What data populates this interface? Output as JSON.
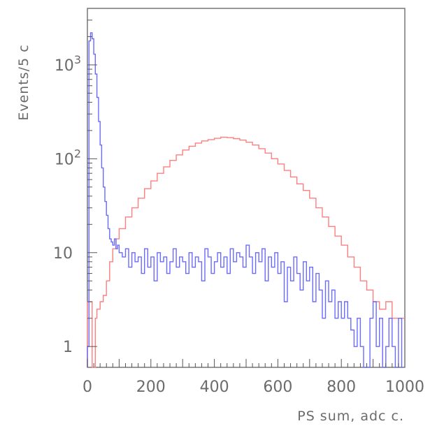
{
  "chart_data": {
    "type": "line",
    "title": "",
    "xlabel": "PS sum, adc c.",
    "ylabel": "Events/5 c",
    "xlim": [
      0,
      1000
    ],
    "ylim": [
      0.6,
      4000
    ],
    "yscale": "log",
    "x_tick_labels": [
      "0",
      "200",
      "400",
      "600",
      "800",
      "1000"
    ],
    "y_tick_labels": [
      {
        "value": 1,
        "label": "1"
      },
      {
        "value": 10,
        "label": "10"
      },
      {
        "value": 100,
        "label": "10",
        "exponent": "2"
      },
      {
        "value": 1000,
        "label": "10",
        "exponent": "3"
      }
    ],
    "grid": false,
    "legend": "none",
    "series": [
      {
        "color": "#ff7f7f",
        "points": [
          [
            0,
            3
          ],
          [
            5,
            3
          ],
          [
            10,
            3
          ],
          [
            15,
            0.5
          ],
          [
            20,
            0.5
          ],
          [
            25,
            2
          ],
          [
            30,
            2.5
          ],
          [
            40,
            3
          ],
          [
            50,
            3.5
          ],
          [
            60,
            5
          ],
          [
            70,
            8
          ],
          [
            80,
            11
          ],
          [
            90,
            14
          ],
          [
            100,
            18
          ],
          [
            120,
            24
          ],
          [
            140,
            30
          ],
          [
            160,
            38
          ],
          [
            180,
            48
          ],
          [
            200,
            58
          ],
          [
            220,
            70
          ],
          [
            240,
            82
          ],
          [
            260,
            96
          ],
          [
            280,
            110
          ],
          [
            300,
            124
          ],
          [
            320,
            136
          ],
          [
            340,
            147
          ],
          [
            360,
            155
          ],
          [
            380,
            160
          ],
          [
            400,
            165
          ],
          [
            420,
            170
          ],
          [
            440,
            168
          ],
          [
            460,
            164
          ],
          [
            480,
            158
          ],
          [
            500,
            150
          ],
          [
            520,
            140
          ],
          [
            540,
            128
          ],
          [
            560,
            115
          ],
          [
            580,
            100
          ],
          [
            600,
            88
          ],
          [
            620,
            75
          ],
          [
            640,
            64
          ],
          [
            660,
            54
          ],
          [
            680,
            46
          ],
          [
            700,
            38
          ],
          [
            720,
            30
          ],
          [
            740,
            24
          ],
          [
            760,
            19
          ],
          [
            780,
            15
          ],
          [
            800,
            12
          ],
          [
            820,
            9
          ],
          [
            840,
            7
          ],
          [
            860,
            5
          ],
          [
            880,
            4
          ],
          [
            900,
            3
          ],
          [
            920,
            2.5
          ],
          [
            940,
            3
          ],
          [
            960,
            2
          ],
          [
            980,
            2
          ],
          [
            995,
            2
          ]
        ]
      },
      {
        "color": "#6a6aff",
        "points": [
          [
            0,
            1
          ],
          [
            5,
            1800
          ],
          [
            10,
            2200
          ],
          [
            15,
            1900
          ],
          [
            20,
            1300
          ],
          [
            25,
            800
          ],
          [
            30,
            450
          ],
          [
            35,
            250
          ],
          [
            40,
            140
          ],
          [
            45,
            80
          ],
          [
            50,
            50
          ],
          [
            55,
            35
          ],
          [
            60,
            25
          ],
          [
            65,
            18
          ],
          [
            70,
            14
          ],
          [
            75,
            13
          ],
          [
            80,
            12
          ],
          [
            85,
            14
          ],
          [
            90,
            11
          ],
          [
            95,
            12
          ],
          [
            100,
            10
          ],
          [
            110,
            9
          ],
          [
            120,
            11
          ],
          [
            130,
            7
          ],
          [
            140,
            10
          ],
          [
            150,
            8
          ],
          [
            160,
            9
          ],
          [
            170,
            6
          ],
          [
            180,
            11
          ],
          [
            190,
            7
          ],
          [
            200,
            9
          ],
          [
            210,
            5
          ],
          [
            220,
            10
          ],
          [
            230,
            8
          ],
          [
            240,
            9
          ],
          [
            250,
            6
          ],
          [
            260,
            8
          ],
          [
            270,
            11
          ],
          [
            280,
            7
          ],
          [
            290,
            9
          ],
          [
            300,
            8
          ],
          [
            310,
            6
          ],
          [
            320,
            10
          ],
          [
            330,
            7
          ],
          [
            340,
            9
          ],
          [
            350,
            8
          ],
          [
            360,
            5
          ],
          [
            370,
            11
          ],
          [
            380,
            9
          ],
          [
            390,
            6
          ],
          [
            400,
            8
          ],
          [
            410,
            10
          ],
          [
            420,
            7
          ],
          [
            430,
            9
          ],
          [
            440,
            6
          ],
          [
            450,
            11
          ],
          [
            460,
            8
          ],
          [
            470,
            10
          ],
          [
            480,
            9
          ],
          [
            490,
            7
          ],
          [
            500,
            12
          ],
          [
            510,
            9
          ],
          [
            520,
            6
          ],
          [
            530,
            10
          ],
          [
            540,
            8
          ],
          [
            550,
            11
          ],
          [
            560,
            5
          ],
          [
            570,
            9
          ],
          [
            580,
            7
          ],
          [
            590,
            10
          ],
          [
            600,
            6
          ],
          [
            610,
            8
          ],
          [
            620,
            3
          ],
          [
            630,
            7
          ],
          [
            640,
            5
          ],
          [
            650,
            9
          ],
          [
            660,
            6
          ],
          [
            670,
            4
          ],
          [
            680,
            8
          ],
          [
            690,
            5
          ],
          [
            700,
            7
          ],
          [
            710,
            3
          ],
          [
            720,
            6
          ],
          [
            730,
            4
          ],
          [
            740,
            2
          ],
          [
            750,
            5
          ],
          [
            760,
            3
          ],
          [
            770,
            4
          ],
          [
            780,
            2
          ],
          [
            790,
            3
          ],
          [
            800,
            2
          ],
          [
            810,
            3
          ],
          [
            820,
            2
          ],
          [
            830,
            1.5
          ],
          [
            840,
            1
          ],
          [
            850,
            2
          ],
          [
            860,
            1
          ],
          [
            870,
            0.5
          ],
          [
            880,
            0.5
          ],
          [
            890,
            2
          ],
          [
            900,
            3
          ],
          [
            910,
            1
          ],
          [
            920,
            2
          ],
          [
            930,
            0.5
          ],
          [
            940,
            1
          ],
          [
            950,
            2
          ],
          [
            960,
            1
          ],
          [
            970,
            0.5
          ],
          [
            980,
            2
          ],
          [
            990,
            0.5
          ]
        ]
      }
    ]
  }
}
